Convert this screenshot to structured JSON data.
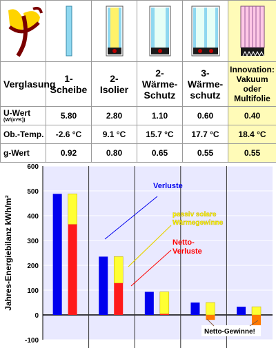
{
  "table": {
    "row_label_header": "Verglasung",
    "columns": [
      {
        "name": "1-Scheibe",
        "lines": [
          "1-",
          "Scheibe"
        ],
        "u_value": "5.80",
        "surface_temp": "-2.6 °C",
        "g_value": "0.92",
        "icon": "single-pane-window-icon"
      },
      {
        "name": "2-Isolier",
        "lines": [
          "2-",
          "Isolier"
        ],
        "u_value": "2.80",
        "surface_temp": "9.1 °C",
        "g_value": "0.80",
        "icon": "double-pane-window-icon"
      },
      {
        "name": "2-Wärme-Schutz",
        "lines": [
          "2-",
          "Wärme-",
          "Schutz"
        ],
        "u_value": "1.10",
        "surface_temp": "15.7 °C",
        "g_value": "0.65",
        "icon": "low-e-double-pane-icon"
      },
      {
        "name": "3-Wärme-schutz",
        "lines": [
          "3-",
          "Wärme-",
          "schutz"
        ],
        "u_value": "0.60",
        "surface_temp": "17.7 °C",
        "g_value": "0.55",
        "icon": "triple-pane-window-icon"
      },
      {
        "name": "Innovation: Vakuum oder Multifolie",
        "lines": [
          "Innovation:",
          "Vakuum",
          "oder",
          "Multifolie"
        ],
        "u_value": "0.40",
        "surface_temp": "18.4 °C",
        "g_value": "0.55",
        "icon": "multifoil-window-icon",
        "highlighted": true
      }
    ],
    "rows": {
      "u_value_label": "U-Wert",
      "u_value_unit": "(W/(m²K))",
      "surface_temp_label": "Ob.-Temp.",
      "g_value_label": "g-Wert"
    },
    "logo_icon": "phi-logo-icon"
  },
  "chart_data": {
    "type": "bar",
    "ylabel": "Jahres-Energiebilanz kWh/m²",
    "ylim": [
      -100,
      600
    ],
    "yticks": [
      -100,
      0,
      100,
      200,
      300,
      400,
      500,
      600
    ],
    "categories": [
      "1-Scheibe",
      "2-Isolier",
      "2-Wärme-Schutz",
      "3-Wärme-schutz",
      "Innovation"
    ],
    "series": [
      {
        "name": "Verluste",
        "color": "#0000ee",
        "values": [
          488,
          235,
          93,
          50,
          33
        ]
      },
      {
        "name": "passiv solare Wärmegewinne",
        "color": "#ffff33",
        "values": [
          488,
          235,
          93,
          50,
          33
        ]
      },
      {
        "name": "Netto-Verluste",
        "color": "#ff1a1a",
        "values": [
          365,
          128,
          4,
          -20,
          -45
        ]
      }
    ],
    "annotations": [
      {
        "text": "Verluste",
        "color": "#0000ee"
      },
      {
        "text": "passiv solare Wärmegewinne",
        "lines": [
          "passiv solare",
          "Wärmegewinne"
        ],
        "color": "#ffff00"
      },
      {
        "text": "Netto-Verluste",
        "lines": [
          "Netto-",
          "Verluste"
        ],
        "color": "#ff0000"
      },
      {
        "text": "Netto-Gewinne!",
        "color": "#000000"
      }
    ],
    "colors": {
      "plot_bg": "#e9e9ff",
      "negative_net": "#ff7a00"
    },
    "grid": true
  }
}
